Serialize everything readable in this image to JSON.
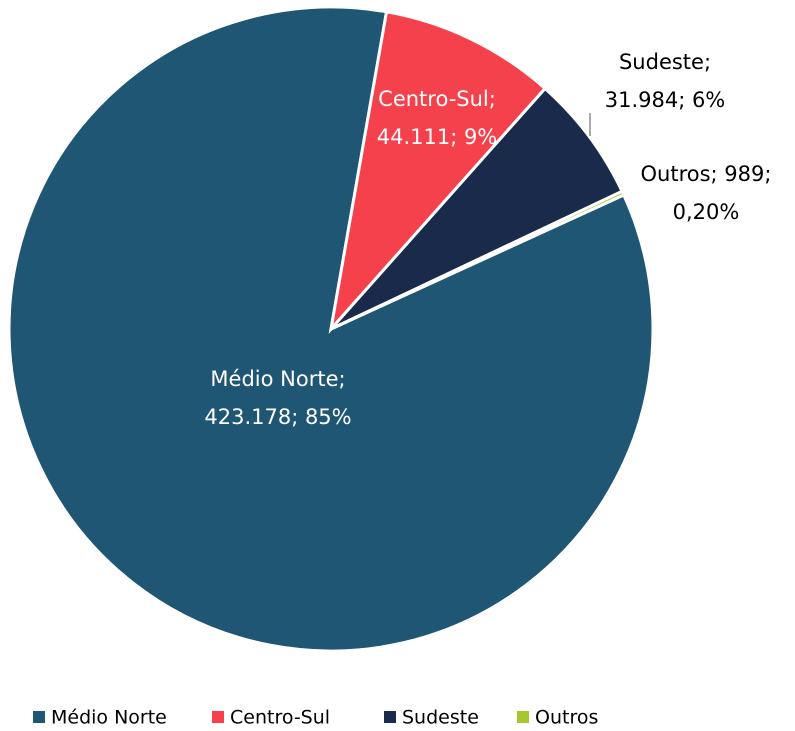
{
  "chart_data": {
    "type": "pie",
    "categories": [
      "Médio Norte",
      "Centro-Sul",
      "Sudeste",
      "Outros"
    ],
    "values": [
      423178,
      44111,
      31984,
      989
    ],
    "value_labels": [
      [
        "Médio Norte;",
        "423.178; 85%"
      ],
      [
        "Centro-Sul;",
        "44.111; 9%"
      ],
      [
        "Sudeste;",
        "31.984; 6%"
      ],
      [
        "Outros; 989;",
        "0,20%"
      ]
    ],
    "colors": [
      "#1f5673",
      "#f5414b",
      "#1a2a4a",
      "#a6c82b"
    ],
    "legend": "bottom"
  }
}
